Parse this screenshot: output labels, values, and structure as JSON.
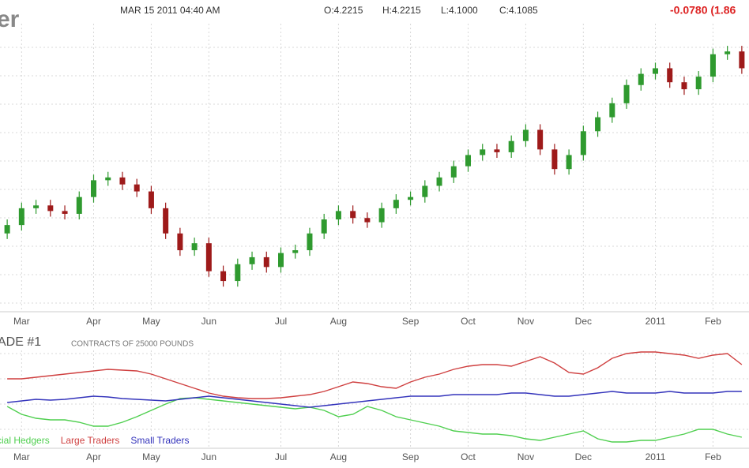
{
  "quote": {
    "name": "er",
    "time": "MAR 15 2011 04:40 AM",
    "open": "O:4.2215",
    "high": "H:4.2215",
    "low": "L:4.1000",
    "close": "C:4.1085",
    "change": "-0.0780 (1.86"
  },
  "chart_data": [
    {
      "type": "candlestick",
      "categories": [
        null,
        "Mar",
        null,
        null,
        null,
        null,
        "Apr",
        null,
        null,
        null,
        "May",
        null,
        null,
        null,
        "Jun",
        null,
        null,
        null,
        null,
        "Jul",
        null,
        null,
        null,
        "Aug",
        null,
        null,
        null,
        null,
        "Sep",
        null,
        null,
        null,
        "Oct",
        null,
        null,
        null,
        "Nov",
        null,
        null,
        null,
        "Dec",
        null,
        null,
        null,
        null,
        "2011",
        null,
        null,
        null,
        "Feb",
        null,
        null
      ],
      "open": [
        3.22,
        3.28,
        3.4,
        3.42,
        3.38,
        3.36,
        3.48,
        3.6,
        3.62,
        3.57,
        3.52,
        3.4,
        3.22,
        3.1,
        3.15,
        2.95,
        2.88,
        3.0,
        3.05,
        2.98,
        3.08,
        3.1,
        3.22,
        3.32,
        3.38,
        3.33,
        3.3,
        3.4,
        3.46,
        3.48,
        3.56,
        3.62,
        3.7,
        3.78,
        3.82,
        3.8,
        3.88,
        3.96,
        3.82,
        3.68,
        3.78,
        3.95,
        4.05,
        4.15,
        4.28,
        4.36,
        4.4,
        4.3,
        4.25,
        4.34,
        4.5,
        4.52
      ],
      "high": [
        3.32,
        3.44,
        3.46,
        3.46,
        3.42,
        3.52,
        3.64,
        3.66,
        3.66,
        3.61,
        3.56,
        3.44,
        3.26,
        3.19,
        3.19,
        2.99,
        3.04,
        3.09,
        3.09,
        3.12,
        3.14,
        3.26,
        3.36,
        3.42,
        3.42,
        3.37,
        3.44,
        3.5,
        3.52,
        3.6,
        3.66,
        3.74,
        3.82,
        3.86,
        3.86,
        3.92,
        4.0,
        4.0,
        3.86,
        3.82,
        3.99,
        4.09,
        4.19,
        4.32,
        4.4,
        4.44,
        4.44,
        4.34,
        4.38,
        4.54,
        4.56,
        4.56
      ],
      "low": [
        3.18,
        3.24,
        3.36,
        3.34,
        3.32,
        3.32,
        3.44,
        3.56,
        3.53,
        3.48,
        3.36,
        3.18,
        3.06,
        3.06,
        2.91,
        2.84,
        2.84,
        2.96,
        2.94,
        2.94,
        3.04,
        3.06,
        3.18,
        3.28,
        3.29,
        3.26,
        3.26,
        3.36,
        3.42,
        3.44,
        3.52,
        3.58,
        3.66,
        3.74,
        3.76,
        3.76,
        3.84,
        3.78,
        3.64,
        3.64,
        3.74,
        3.91,
        4.01,
        4.11,
        4.24,
        4.32,
        4.26,
        4.21,
        4.21,
        4.3,
        4.46,
        4.36
      ],
      "close": [
        3.28,
        3.4,
        3.42,
        3.38,
        3.36,
        3.48,
        3.6,
        3.62,
        3.57,
        3.52,
        3.4,
        3.22,
        3.1,
        3.15,
        2.95,
        2.88,
        3.0,
        3.05,
        2.98,
        3.08,
        3.1,
        3.22,
        3.32,
        3.38,
        3.33,
        3.3,
        3.4,
        3.46,
        3.48,
        3.56,
        3.62,
        3.7,
        3.78,
        3.82,
        3.8,
        3.88,
        3.96,
        3.82,
        3.68,
        3.78,
        3.95,
        4.05,
        4.15,
        4.28,
        4.36,
        4.4,
        4.3,
        4.25,
        4.34,
        4.5,
        4.52,
        4.4
      ],
      "up_color": "#2f9a2f",
      "down_color": "#9e1a1a",
      "ylim": [
        2.7,
        4.6
      ],
      "grid": true
    },
    {
      "type": "line",
      "title": "ADE #1",
      "subtitle": "CONTRACTS OF 25000 POUNDS",
      "categories": [
        null,
        "Mar",
        null,
        null,
        null,
        null,
        "Apr",
        null,
        null,
        null,
        "May",
        null,
        null,
        null,
        "Jun",
        null,
        null,
        null,
        null,
        "Jul",
        null,
        null,
        null,
        "Aug",
        null,
        null,
        null,
        null,
        "Sep",
        null,
        null,
        null,
        "Oct",
        null,
        null,
        null,
        "Nov",
        null,
        null,
        null,
        "Dec",
        null,
        null,
        null,
        null,
        "2011",
        null,
        null,
        null,
        "Feb",
        null,
        null
      ],
      "series": [
        {
          "name": "cial Hedgers",
          "color": "#4fcf4f",
          "values": [
            -5,
            -15,
            -20,
            -22,
            -22,
            -25,
            -30,
            -30,
            -25,
            -18,
            -10,
            -2,
            5,
            6,
            4,
            2,
            0,
            -2,
            -4,
            -6,
            -8,
            -6,
            -10,
            -18,
            -15,
            -5,
            -10,
            -18,
            -22,
            -26,
            -30,
            -36,
            -38,
            -40,
            -40,
            -42,
            -46,
            -48,
            -44,
            -40,
            -36,
            -46,
            -50,
            -50,
            -48,
            -48,
            -44,
            -40,
            -34,
            -34,
            -40,
            -44
          ]
        },
        {
          "name": "Large Traders",
          "color": "#cf3f3f",
          "values": [
            30,
            30,
            32,
            34,
            36,
            38,
            40,
            42,
            41,
            40,
            36,
            30,
            24,
            18,
            12,
            8,
            6,
            5,
            5,
            6,
            8,
            10,
            14,
            20,
            26,
            24,
            20,
            18,
            26,
            32,
            36,
            42,
            46,
            48,
            48,
            46,
            52,
            58,
            50,
            38,
            36,
            44,
            56,
            62,
            64,
            64,
            62,
            60,
            56,
            60,
            62,
            48
          ]
        },
        {
          "name": "Small Traders",
          "color": "#3333bb",
          "values": [
            0,
            2,
            4,
            3,
            4,
            6,
            8,
            7,
            5,
            4,
            3,
            2,
            4,
            6,
            8,
            6,
            4,
            2,
            0,
            -2,
            -4,
            -6,
            -4,
            -2,
            0,
            2,
            4,
            6,
            8,
            8,
            8,
            10,
            10,
            10,
            10,
            12,
            12,
            10,
            8,
            8,
            10,
            12,
            14,
            12,
            12,
            12,
            14,
            12,
            12,
            12,
            14,
            14
          ]
        }
      ],
      "ylim": [
        -70,
        70
      ],
      "grid": true
    }
  ]
}
